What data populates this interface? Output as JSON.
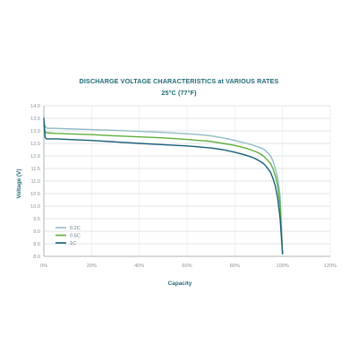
{
  "chart_data": {
    "type": "line",
    "title": "DISCHARGE VOLTAGE CHARACTERISTICS at VARIOUS RATES",
    "subtitle": "25°C (77°F)",
    "xlabel": "Capacity",
    "ylabel": "Voltage (V)",
    "xlim": [
      0,
      120
    ],
    "ylim": [
      8.0,
      14.0
    ],
    "x_ticks": [
      0,
      20,
      40,
      60,
      80,
      100,
      120
    ],
    "x_tick_labels": [
      "0%",
      "20%",
      "40%",
      "60%",
      "80%",
      "100%",
      "120%"
    ],
    "y_ticks": [
      8.0,
      8.5,
      9.0,
      9.5,
      10.0,
      10.5,
      11.0,
      11.5,
      12.0,
      12.5,
      13.0,
      13.5,
      14.0
    ],
    "y_tick_labels": [
      "8.0",
      "8.5",
      "9.0",
      "9.5",
      "10.0",
      "10.5",
      "11.0",
      "11.5",
      "12.0",
      "12.5",
      "13.0",
      "13.5",
      "14.0"
    ],
    "grid": true,
    "legend_position": "bottom-left",
    "series": [
      {
        "name": "0.2C",
        "color": "#8fbcc6",
        "x": [
          0,
          0.5,
          1,
          2,
          5,
          10,
          20,
          30,
          40,
          50,
          60,
          65,
          70,
          75,
          80,
          85,
          88,
          90,
          92,
          93,
          95,
          96,
          97,
          98,
          99,
          100
        ],
        "y": [
          13.35,
          13.2,
          13.12,
          13.1,
          13.1,
          13.08,
          13.05,
          13.02,
          12.98,
          12.94,
          12.88,
          12.85,
          12.8,
          12.72,
          12.62,
          12.5,
          12.42,
          12.35,
          12.28,
          12.2,
          12.0,
          11.8,
          11.5,
          11.1,
          10.4,
          8.1
        ]
      },
      {
        "name": "0.5C",
        "color": "#5fae3c",
        "x": [
          0,
          0.5,
          1,
          2,
          5,
          10,
          20,
          30,
          40,
          50,
          60,
          65,
          70,
          75,
          80,
          85,
          88,
          90,
          92,
          93,
          95,
          96,
          97,
          98,
          99,
          100
        ],
        "y": [
          13.2,
          12.98,
          12.92,
          12.92,
          12.9,
          12.88,
          12.85,
          12.8,
          12.76,
          12.72,
          12.66,
          12.62,
          12.58,
          12.5,
          12.42,
          12.3,
          12.2,
          12.12,
          12.0,
          11.9,
          11.7,
          11.5,
          11.2,
          10.8,
          10.0,
          8.1
        ]
      },
      {
        "name": "1C",
        "color": "#1a5e78",
        "x": [
          0,
          0.5,
          1,
          2,
          5,
          10,
          20,
          30,
          40,
          50,
          60,
          65,
          70,
          75,
          80,
          85,
          88,
          90,
          92,
          93,
          95,
          96,
          97,
          98,
          99,
          100
        ],
        "y": [
          13.5,
          12.75,
          12.68,
          12.68,
          12.68,
          12.66,
          12.62,
          12.56,
          12.5,
          12.45,
          12.4,
          12.36,
          12.32,
          12.25,
          12.15,
          12.02,
          11.92,
          11.82,
          11.7,
          11.6,
          11.35,
          11.1,
          10.8,
          10.3,
          9.5,
          8.1
        ]
      }
    ]
  }
}
